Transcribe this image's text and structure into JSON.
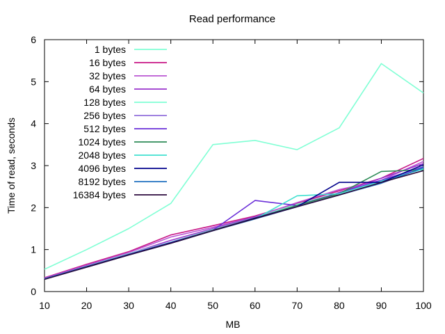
{
  "chart_data": {
    "type": "line",
    "title": "Read performance",
    "xlabel": "MB",
    "ylabel": "Time of read, seconds",
    "x": [
      10,
      20,
      30,
      40,
      50,
      60,
      70,
      80,
      90,
      100
    ],
    "xlim": [
      10,
      100
    ],
    "ylim": [
      0,
      6
    ],
    "x_ticks": [
      "10",
      "20",
      "30",
      "40",
      "50",
      "60",
      "70",
      "80",
      "90",
      "100"
    ],
    "y_ticks": [
      "0",
      "1",
      "2",
      "3",
      "4",
      "5",
      "6"
    ],
    "grid": false,
    "legend_position": "top-left",
    "series": [
      {
        "name": "1 bytes",
        "color": "#7fffd4",
        "values": [
          0.53,
          1.0,
          1.5,
          2.1,
          3.5,
          3.6,
          3.38,
          3.9,
          5.43,
          4.73
        ]
      },
      {
        "name": "16 bytes",
        "color": "#c71585",
        "values": [
          0.33,
          0.65,
          0.95,
          1.35,
          1.57,
          1.8,
          2.1,
          2.4,
          2.7,
          3.17
        ]
      },
      {
        "name": "32 bytes",
        "color": "#ba55d3",
        "values": [
          0.32,
          0.63,
          0.93,
          1.3,
          1.53,
          1.78,
          2.12,
          2.43,
          2.65,
          3.1
        ]
      },
      {
        "name": "64 bytes",
        "color": "#9932cc",
        "values": [
          0.31,
          0.61,
          0.9,
          1.22,
          1.5,
          1.78,
          2.05,
          2.36,
          2.7,
          3.05
        ]
      },
      {
        "name": "128 bytes",
        "color": "#7fffd4",
        "values": [
          0.3,
          0.6,
          0.9,
          1.18,
          1.48,
          1.76,
          2.08,
          2.35,
          2.62,
          2.98
        ]
      },
      {
        "name": "256 bytes",
        "color": "#9370db",
        "values": [
          0.3,
          0.59,
          0.89,
          1.17,
          1.47,
          1.76,
          2.05,
          2.35,
          2.63,
          2.97
        ]
      },
      {
        "name": "512 bytes",
        "color": "#6a2ed8",
        "values": [
          0.3,
          0.59,
          0.88,
          1.17,
          1.46,
          2.17,
          2.05,
          2.35,
          2.65,
          2.97
        ]
      },
      {
        "name": "1024 bytes",
        "color": "#2e8b57",
        "values": [
          0.3,
          0.59,
          0.88,
          1.16,
          1.46,
          1.75,
          2.05,
          2.33,
          2.86,
          2.9
        ]
      },
      {
        "name": "2048 bytes",
        "color": "#40e0d0",
        "values": [
          0.3,
          0.59,
          0.88,
          1.16,
          1.45,
          1.73,
          2.28,
          2.33,
          2.63,
          2.92
        ]
      },
      {
        "name": "4096 bytes",
        "color": "#00008b",
        "values": [
          0.3,
          0.59,
          0.88,
          1.16,
          1.45,
          1.75,
          2.02,
          2.6,
          2.6,
          3.02
        ]
      },
      {
        "name": "8192 bytes",
        "color": "#1e6fbf",
        "values": [
          0.3,
          0.58,
          0.87,
          1.15,
          1.45,
          1.73,
          2.02,
          2.3,
          2.58,
          2.95
        ]
      },
      {
        "name": "16384 bytes",
        "color": "#2b0a3d",
        "values": [
          0.29,
          0.58,
          0.87,
          1.15,
          1.45,
          1.74,
          2.02,
          2.3,
          2.6,
          2.88
        ]
      }
    ]
  }
}
